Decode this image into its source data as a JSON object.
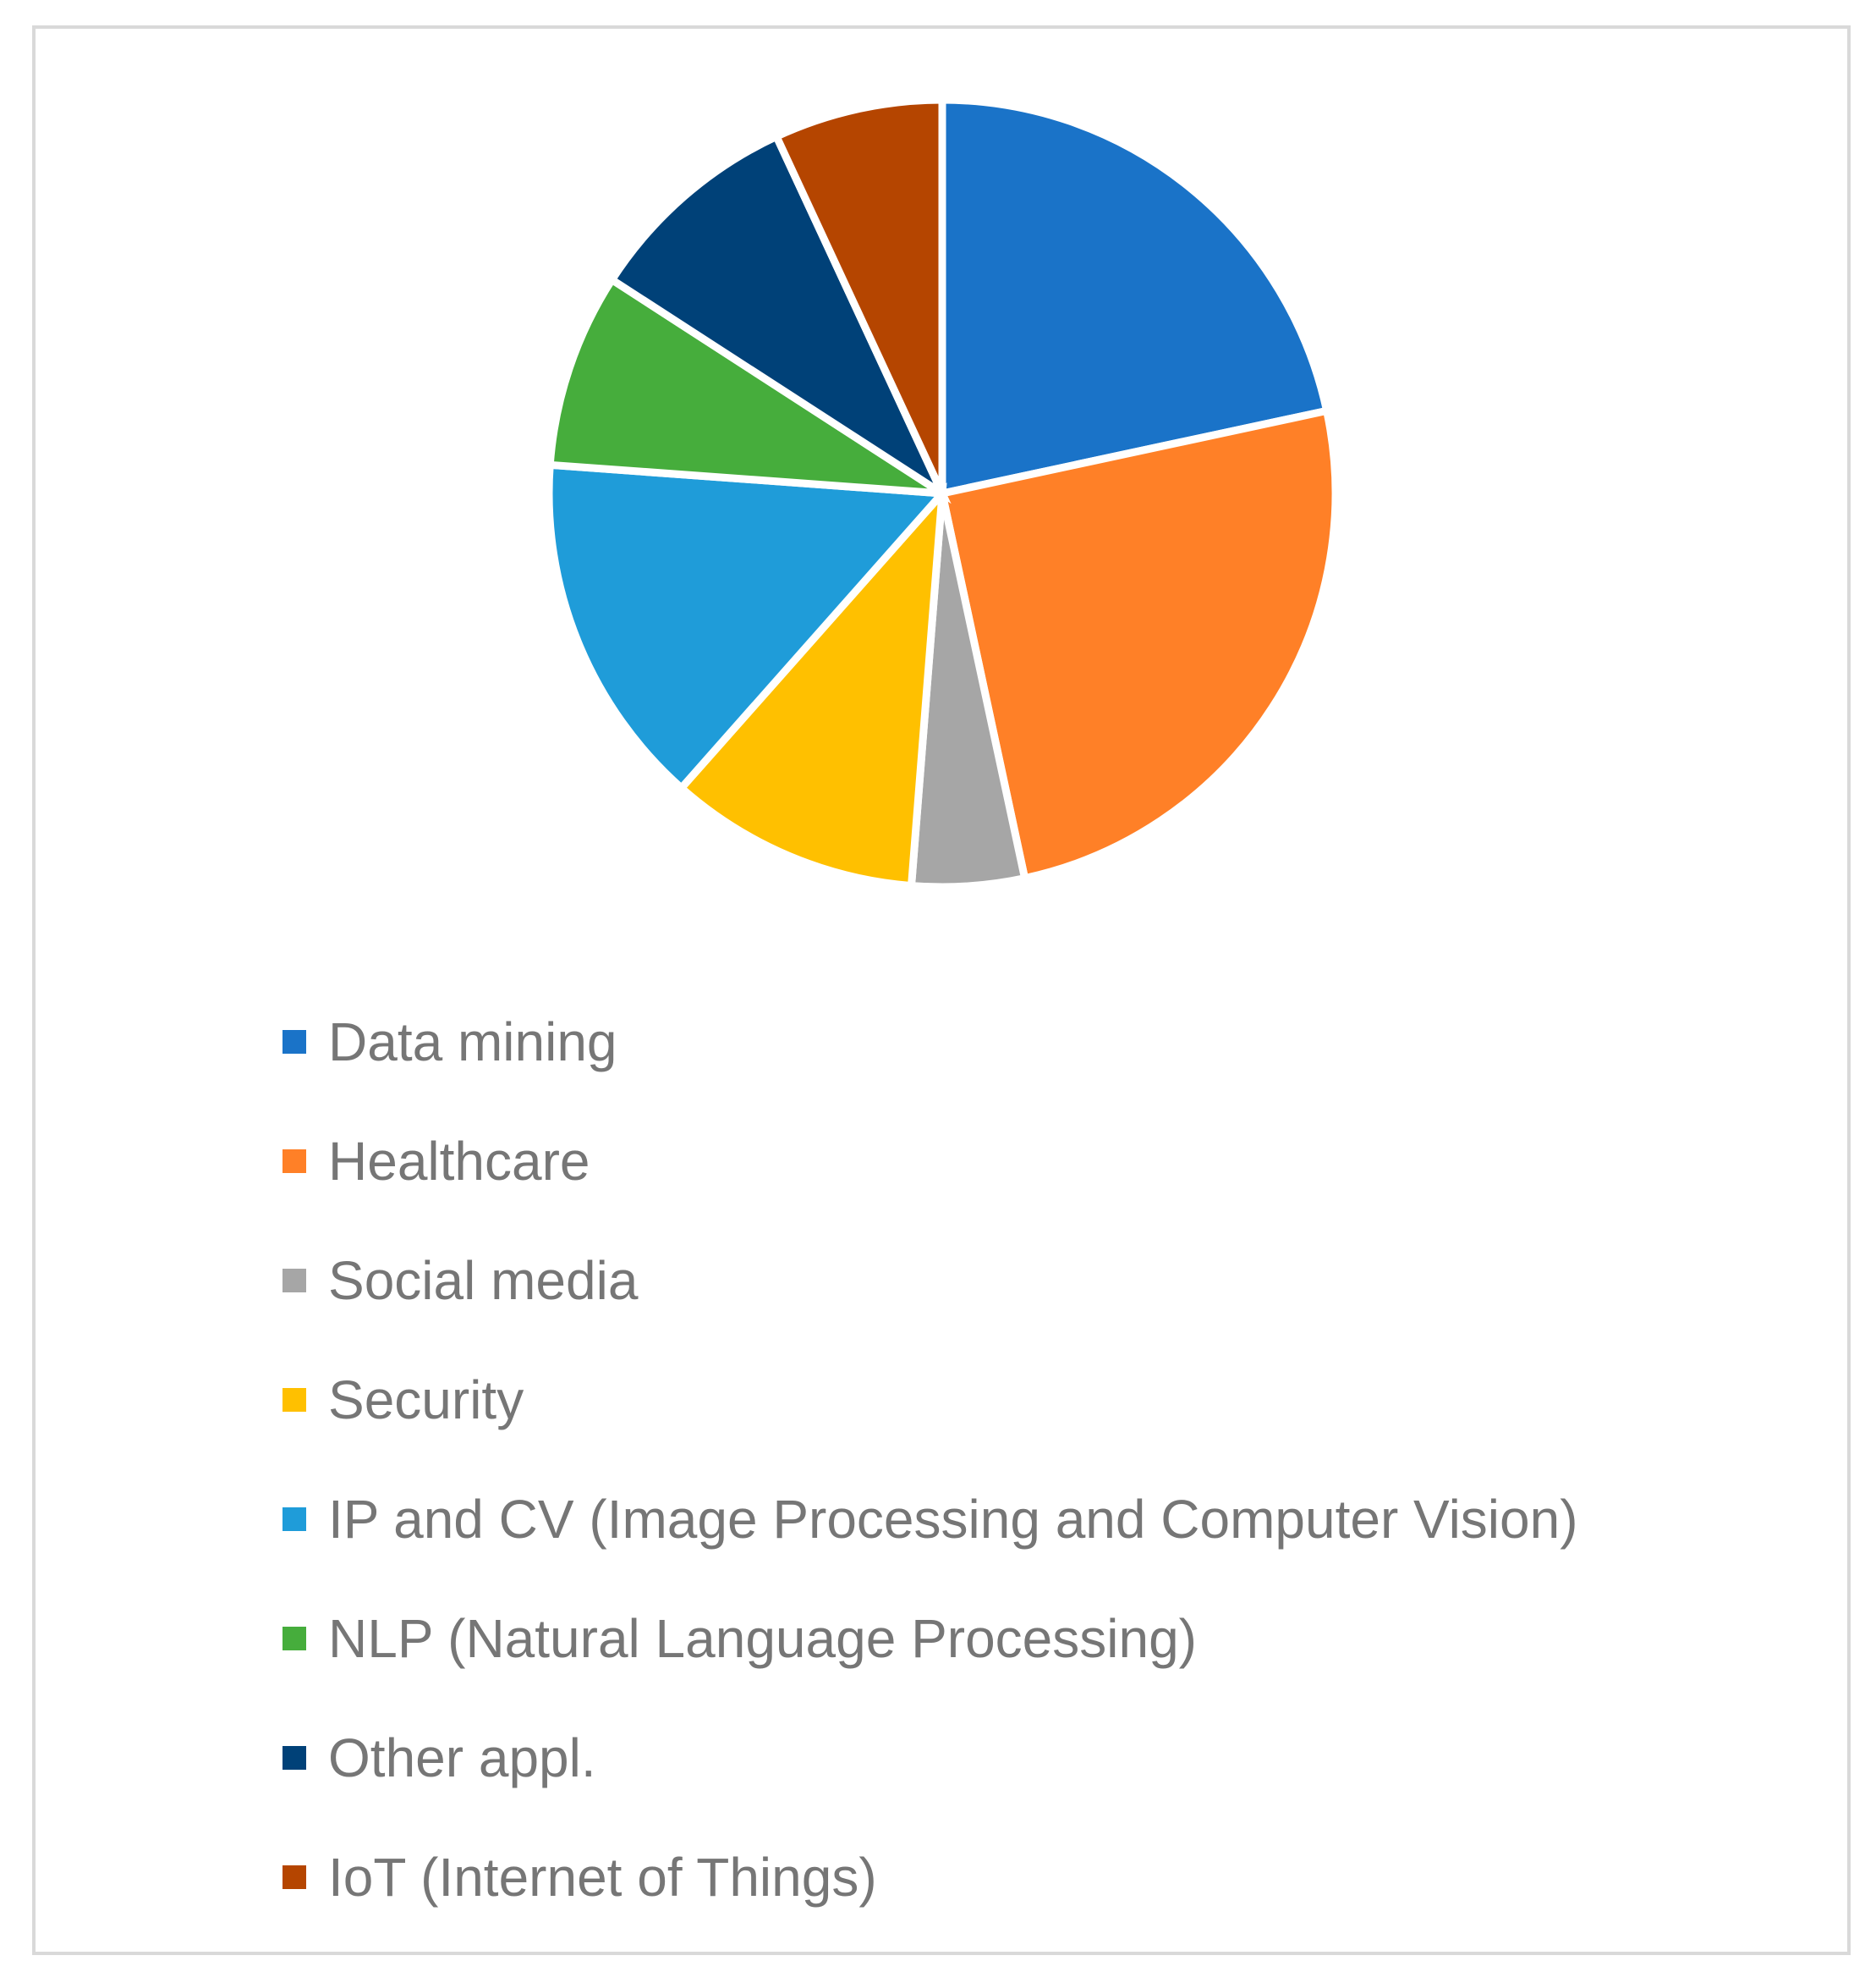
{
  "chart_data": {
    "type": "pie",
    "title": "",
    "legend_position": "bottom",
    "slices": [
      {
        "label": "Data mining",
        "value": 22.5,
        "color": "#1a73c8"
      },
      {
        "label": "Healthcare",
        "value": 26.0,
        "color": "#ff8027"
      },
      {
        "label": "Social media",
        "value": 4.8,
        "color": "#a6a6a6"
      },
      {
        "label": "Security",
        "value": 10.7,
        "color": "#ffc000"
      },
      {
        "label": "IP and CV (Image Processing and Computer Vision)",
        "value": 15.2,
        "color": "#1f9cd9"
      },
      {
        "label": "NLP (Natural Language Processing)",
        "value": 8.3,
        "color": "#46ad3c"
      },
      {
        "label": "Other appl.",
        "value": 9.3,
        "color": "#004178"
      },
      {
        "label": "IoT (Internet of Things)",
        "value": 7.2,
        "color": "#b54500"
      }
    ]
  }
}
